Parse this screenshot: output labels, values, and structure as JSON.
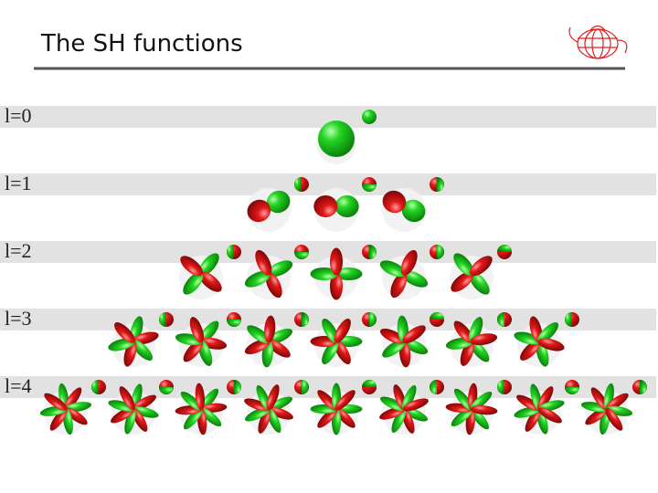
{
  "title": "The SH functions",
  "rows": [
    "l=0",
    "l=1",
    "l=2",
    "l=3",
    "l=4"
  ]
}
